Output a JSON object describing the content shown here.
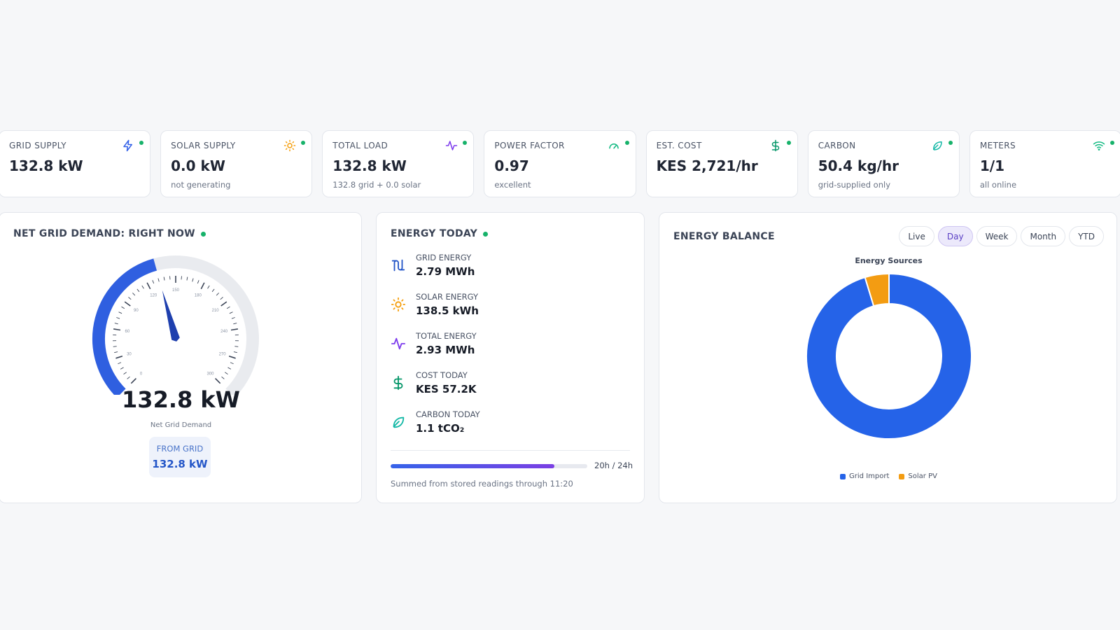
{
  "kpis": [
    {
      "label": "GRID SUPPLY",
      "value": "132.8 kW",
      "sub": "",
      "icon": "bolt-icon",
      "color": "#3563e9"
    },
    {
      "label": "SOLAR SUPPLY",
      "value": "0.0 kW",
      "sub": "not generating",
      "icon": "sun-icon",
      "color": "#f59e0b"
    },
    {
      "label": "TOTAL LOAD",
      "value": "132.8 kW",
      "sub": "132.8 grid + 0.0 solar",
      "icon": "pulse-icon",
      "color": "#7c3aed"
    },
    {
      "label": "POWER FACTOR",
      "value": "0.97",
      "sub": "excellent",
      "icon": "gauge-icon",
      "color": "#10b981"
    },
    {
      "label": "EST. COST",
      "value": "KES 2,721/hr",
      "sub": "",
      "icon": "dollar-icon",
      "color": "#059669"
    },
    {
      "label": "CARBON",
      "value": "50.4 kg/hr",
      "sub": "grid-supplied only",
      "icon": "leaf-icon",
      "color": "#14b8a6"
    },
    {
      "label": "METERS",
      "value": "1/1",
      "sub": "all online",
      "icon": "wifi-icon",
      "color": "#10b981"
    }
  ],
  "demand": {
    "title": "NET GRID DEMAND: RIGHT NOW",
    "value_text": "132.8 kW",
    "caption": "Net Grid Demand",
    "chip_label": "FROM GRID",
    "chip_value": "132.8 kW",
    "gauge_value": 132.8,
    "gauge_max": 300,
    "tick_labels": [
      "0",
      "30",
      "60",
      "90",
      "120",
      "150",
      "180",
      "210",
      "240",
      "270",
      "300"
    ],
    "arc_color": "#2f5fe0",
    "track_color": "#e9ebef"
  },
  "energy_today": {
    "title": "ENERGY TODAY",
    "items": [
      {
        "label": "GRID ENERGY",
        "value": "2.79 MWh",
        "icon": "transmission-icon"
      },
      {
        "label": "SOLAR ENERGY",
        "value": "138.5 kWh",
        "icon": "sun-icon"
      },
      {
        "label": "TOTAL ENERGY",
        "value": "2.93 MWh",
        "icon": "pulse-icon"
      },
      {
        "label": "COST TODAY",
        "value": "KES 57.2K",
        "icon": "dollar-icon"
      },
      {
        "label": "CARBON TODAY",
        "value": "1.1 tCO₂",
        "icon": "leaf-icon"
      }
    ],
    "progress_fraction": 0.8333,
    "progress_text": "20h / 24h",
    "footnote": "Summed from stored readings through 11:20"
  },
  "balance": {
    "title": "ENERGY BALANCE",
    "tabs": [
      "Live",
      "Day",
      "Week",
      "Month",
      "YTD"
    ],
    "active_tab": "Day",
    "chart_data": {
      "type": "pie",
      "title": "Energy Sources",
      "labels": [
        "Grid Import",
        "Solar PV"
      ],
      "values": [
        95.3,
        4.7
      ],
      "colors": [
        "#2563e8",
        "#f39c12"
      ],
      "legend": "bottom"
    }
  }
}
